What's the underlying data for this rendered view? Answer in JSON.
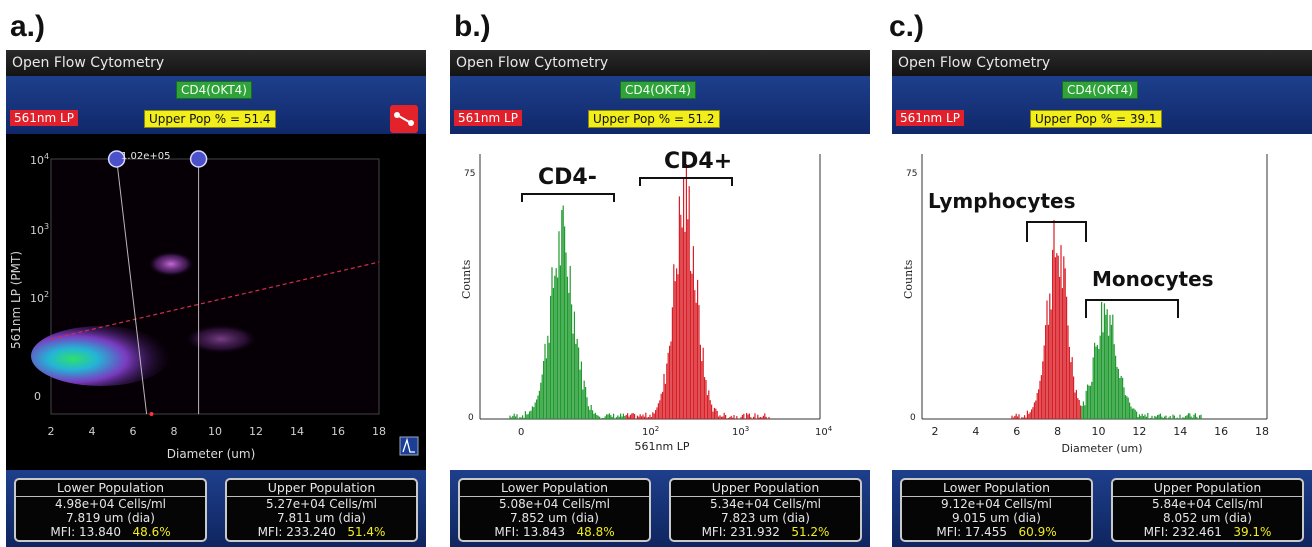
{
  "labels": [
    "a.)",
    "b.)",
    "c.)"
  ],
  "panels": [
    {
      "window_title": "Open Flow Cytometry",
      "marker": "CD4(OKT4)",
      "channel": "561nm LP",
      "upper_pop": "Upper Pop % = 51.4",
      "gate_readout": "1.02e+05",
      "lower": {
        "title": "Lower Population",
        "conc": "4.98e+04 Cells/ml",
        "dia": "7.819 um (dia)",
        "mfi_label": "MFI:",
        "mfi": "13.840",
        "pct": "48.6%"
      },
      "upper": {
        "title": "Upper Population",
        "conc": "5.27e+04 Cells/ml",
        "dia": "7.811 um (dia)",
        "mfi_label": "MFI:",
        "mfi": "233.240",
        "pct": "51.4%"
      }
    },
    {
      "window_title": "Open Flow Cytometry",
      "marker": "CD4(OKT4)",
      "channel": "561nm LP",
      "upper_pop": "Upper Pop % = 51.2",
      "lower": {
        "title": "Lower Population",
        "conc": "5.08e+04 Cells/ml",
        "dia": "7.852 um (dia)",
        "mfi_label": "MFI:",
        "mfi": "13.843",
        "pct": "48.8%"
      },
      "upper": {
        "title": "Upper Population",
        "conc": "5.34e+04 Cells/ml",
        "dia": "7.823 um (dia)",
        "mfi_label": "MFI:",
        "mfi": "231.932",
        "pct": "51.2%"
      }
    },
    {
      "window_title": "Open Flow Cytometry",
      "marker": "CD4(OKT4)",
      "channel": "561nm LP",
      "upper_pop": "Upper Pop % = 39.1",
      "lower": {
        "title": "Lower Population",
        "conc": "9.12e+04 Cells/ml",
        "dia": "9.015 um (dia)",
        "mfi_label": "MFI:",
        "mfi": "17.455",
        "pct": "60.9%"
      },
      "upper": {
        "title": "Upper Population",
        "conc": "5.84e+04 Cells/ml",
        "dia": "8.052 um (dia)",
        "mfi_label": "MFI:",
        "mfi": "232.461",
        "pct": "39.1%"
      }
    }
  ],
  "plots": {
    "a": {
      "ylabel": "561nm LP (PMT)",
      "xlabel": "Diameter (um)",
      "yticks": [
        "10",
        "10",
        "10",
        "0"
      ],
      "yexp": [
        "4",
        "3",
        "2"
      ],
      "xticks": [
        "2",
        "4",
        "6",
        "8",
        "10",
        "12",
        "14",
        "16",
        "18"
      ],
      "xrange": [
        2,
        18
      ],
      "gates_um": [
        5.2,
        9.2
      ]
    },
    "b": {
      "ylabel": "Counts",
      "xlabel": "561nm LP",
      "ymax": "75",
      "yzero": "0",
      "xticks": [
        "0",
        "10",
        "10",
        "10"
      ],
      "xexp": [
        "",
        "2",
        "3",
        "4"
      ],
      "annotations": [
        "CD4-",
        "CD4+"
      ]
    },
    "c": {
      "ylabel": "Counts",
      "xlabel": "Diameter (um)",
      "ymax": "75",
      "yzero": "0",
      "xticks": [
        "2",
        "4",
        "6",
        "8",
        "10",
        "12",
        "14",
        "16",
        "18"
      ],
      "xrange": [
        2,
        18
      ],
      "annotations": [
        "Lymphocytes",
        "Monocytes"
      ]
    }
  },
  "colors": {
    "red_peak": "#d81e26",
    "green_peak": "#1f9a2e",
    "badge_green": "#2fa23a",
    "badge_red": "#e0202a",
    "badge_yellow": "#f2ee1c"
  }
}
